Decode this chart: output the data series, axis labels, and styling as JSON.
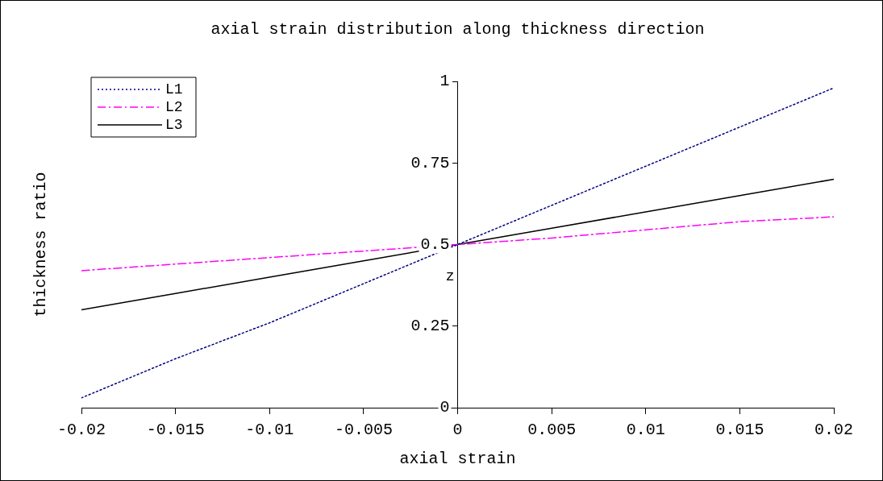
{
  "chart_data": {
    "type": "line",
    "title": "axial strain distribution along thickness direction",
    "xlabel": "axial strain",
    "ylabel": "thickness ratio",
    "annotations": [
      "z"
    ],
    "xlim": [
      -0.02,
      0.02
    ],
    "xticks": [
      -0.02,
      -0.015,
      -0.01,
      -0.005,
      0,
      0.005,
      0.01,
      0.015,
      0.02
    ],
    "ylim": [
      0,
      1
    ],
    "yticks": [
      0,
      0.25,
      0.5,
      0.75,
      1
    ],
    "grid": false,
    "legend": "top left",
    "marker": "none",
    "series": [
      {
        "name": "L1",
        "color": "#000080",
        "line_style": "dotted",
        "x": [
          -0.02,
          -0.015,
          -0.01,
          -0.005,
          0,
          0.005,
          0.01,
          0.015,
          0.02
        ],
        "values": [
          0.03,
          0.15,
          0.26,
          0.38,
          0.5,
          0.62,
          0.74,
          0.86,
          0.98
        ]
      },
      {
        "name": "L2",
        "color": "#ff00ff",
        "line_style": "dashed",
        "x": [
          -0.02,
          -0.015,
          -0.01,
          -0.005,
          0,
          0.005,
          0.01,
          0.015,
          0.02
        ],
        "values": [
          0.42,
          0.44,
          0.46,
          0.48,
          0.5,
          0.52,
          0.545,
          0.57,
          0.585
        ]
      },
      {
        "name": "L3",
        "color": "#000000",
        "line_style": "solid",
        "x": [
          -0.02,
          -0.015,
          -0.01,
          -0.005,
          0,
          0.005,
          0.01,
          0.015,
          0.02
        ],
        "values": [
          0.3,
          0.35,
          0.4,
          0.45,
          0.5,
          0.55,
          0.6,
          0.65,
          0.7
        ]
      }
    ]
  }
}
